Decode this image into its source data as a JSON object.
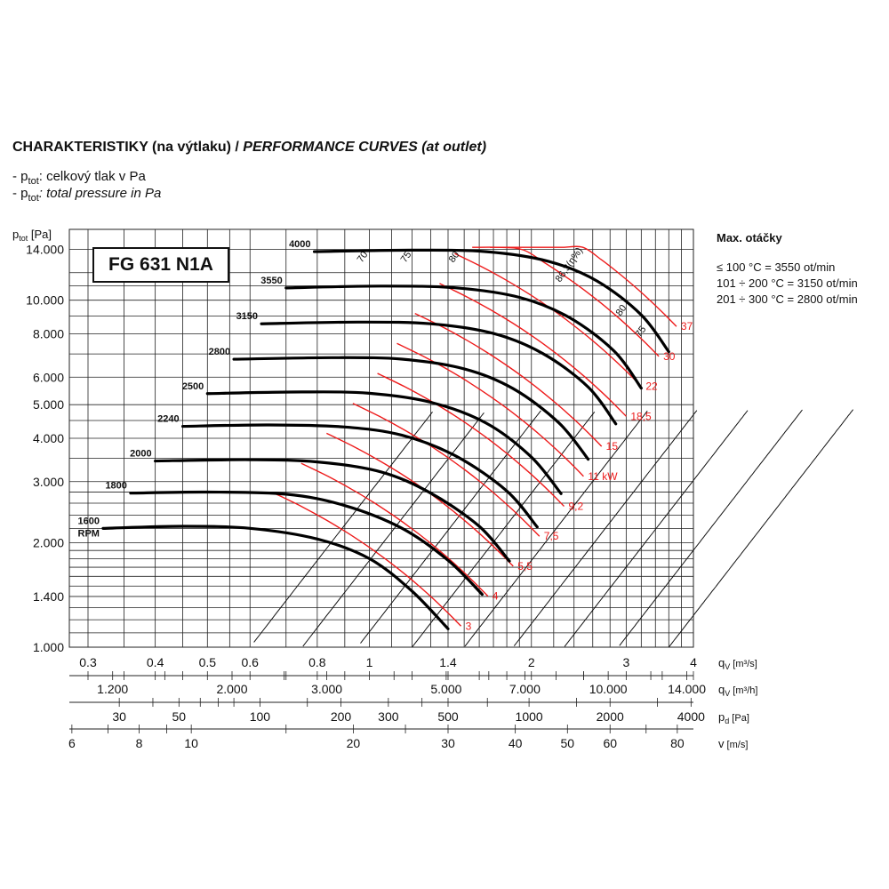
{
  "header": {
    "title_bold": "CHARAKTERISTIKY (na výtlaku) / ",
    "title_italic": "PERFORMANCE CURVES (at outlet)",
    "legend_cz_prefix": "- p",
    "legend_cz_sub": "tot",
    "legend_cz_text": ": celkový tlak v Pa",
    "legend_en_prefix": "- p",
    "legend_en_sub": "tot",
    "legend_en_text": ": total pressure in Pa"
  },
  "model": "FG 631 N1A",
  "max_speed": {
    "heading": "Max. otáčky",
    "lines": [
      "≤ 100 °C = 3550 ot/min",
      "101 ÷ 200 °C = 3150 ot/min",
      "201 ÷ 300 °C = 2800 ot/min"
    ]
  },
  "colors": {
    "rpm_curve": "#000000",
    "power_curve": "#ee1c1c",
    "grid": "#222222",
    "efficiency_line": "#111111"
  },
  "chart_data": {
    "type": "line",
    "title": "FG 631 N1A",
    "y_axis": {
      "label": "p",
      "label_sub": "tot",
      "label_unit": " [Pa]",
      "scale": "log",
      "range": [
        1000,
        16000
      ],
      "tick_values": [
        1000,
        1400,
        2000,
        3000,
        4000,
        5000,
        6000,
        8000,
        10000,
        14000
      ],
      "tick_labels": [
        "1.000",
        "1.400",
        "2.000",
        "3.000",
        "4.000",
        "5.000",
        "6.000",
        "8.000",
        "10.000",
        "14.000"
      ]
    },
    "x_axes": [
      {
        "label": "q",
        "label_sub": "V",
        "label_unit": " [m³/s]",
        "scale": "log",
        "tick_values": [
          0.3,
          0.4,
          0.5,
          0.6,
          0.8,
          1,
          1.4,
          2,
          3,
          4
        ],
        "tick_labels": [
          "0.3",
          "0.4",
          "0.5",
          "0.6",
          "0.8",
          "1",
          "1.4",
          "2",
          "3",
          "4"
        ]
      },
      {
        "label": "q",
        "label_sub": "V",
        "label_unit": " [m³/h]",
        "scale": "log",
        "tick_values": [
          1200,
          2000,
          3000,
          5000,
          7000,
          10000,
          14000
        ],
        "tick_labels": [
          "1.200",
          "2.000",
          "3.000",
          "5.000",
          "7.000",
          "10.000",
          "14.000"
        ]
      },
      {
        "label": "p",
        "label_sub": "d",
        "label_unit": " [Pa]",
        "scale": "log",
        "tick_values": [
          30,
          50,
          100,
          200,
          300,
          500,
          1000,
          2000,
          4000
        ],
        "tick_labels": [
          "30",
          "50",
          "100",
          "200",
          "300",
          "500",
          "1000",
          "2000",
          "4000"
        ]
      },
      {
        "label": "v",
        "label_sub": "",
        "label_unit": " [m/s]",
        "scale": "log",
        "tick_values": [
          6,
          8,
          10,
          20,
          30,
          40,
          50,
          60,
          80
        ],
        "tick_labels": [
          "6",
          "8",
          "10",
          "20",
          "30",
          "40",
          "50",
          "60",
          "80"
        ]
      }
    ],
    "rpm_curves": [
      {
        "rpm_label": "1600",
        "unit_label": "RPM",
        "points": [
          [
            0.32,
            2200
          ],
          [
            0.45,
            2230
          ],
          [
            0.6,
            2200
          ],
          [
            0.8,
            2050
          ],
          [
            1.0,
            1800
          ],
          [
            1.2,
            1450
          ],
          [
            1.4,
            1130
          ]
        ]
      },
      {
        "rpm_label": "1800",
        "points": [
          [
            0.36,
            2780
          ],
          [
            0.5,
            2800
          ],
          [
            0.7,
            2760
          ],
          [
            0.9,
            2560
          ],
          [
            1.15,
            2200
          ],
          [
            1.4,
            1780
          ],
          [
            1.62,
            1420
          ]
        ]
      },
      {
        "rpm_label": "2000",
        "points": [
          [
            0.4,
            3440
          ],
          [
            0.6,
            3470
          ],
          [
            0.8,
            3420
          ],
          [
            1.05,
            3200
          ],
          [
            1.3,
            2780
          ],
          [
            1.6,
            2230
          ],
          [
            1.82,
            1770
          ]
        ]
      },
      {
        "rpm_label": "2240",
        "points": [
          [
            0.45,
            4330
          ],
          [
            0.65,
            4370
          ],
          [
            0.9,
            4310
          ],
          [
            1.15,
            4080
          ],
          [
            1.45,
            3550
          ],
          [
            1.8,
            2820
          ],
          [
            2.05,
            2220
          ]
        ]
      },
      {
        "rpm_label": "2500",
        "points": [
          [
            0.5,
            5380
          ],
          [
            0.75,
            5440
          ],
          [
            1.0,
            5390
          ],
          [
            1.3,
            5080
          ],
          [
            1.65,
            4420
          ],
          [
            2.0,
            3530
          ],
          [
            2.27,
            2770
          ]
        ]
      },
      {
        "rpm_label": "2800",
        "points": [
          [
            0.56,
            6760
          ],
          [
            0.85,
            6830
          ],
          [
            1.15,
            6760
          ],
          [
            1.5,
            6340
          ],
          [
            1.85,
            5560
          ],
          [
            2.25,
            4430
          ],
          [
            2.55,
            3480
          ]
        ]
      },
      {
        "rpm_label": "3150",
        "points": [
          [
            0.63,
            8550
          ],
          [
            0.95,
            8650
          ],
          [
            1.3,
            8550
          ],
          [
            1.7,
            8020
          ],
          [
            2.1,
            7020
          ],
          [
            2.55,
            5620
          ],
          [
            2.87,
            4400
          ]
        ]
      },
      {
        "rpm_label": "3550",
        "points": [
          [
            0.7,
            10850
          ],
          [
            1.05,
            10980
          ],
          [
            1.45,
            10850
          ],
          [
            1.9,
            10190
          ],
          [
            2.35,
            8920
          ],
          [
            2.85,
            7130
          ],
          [
            3.2,
            5580
          ]
        ]
      },
      {
        "rpm_label": "4000",
        "points": [
          [
            0.79,
            13800
          ],
          [
            1.2,
            13940
          ],
          [
            1.65,
            13800
          ],
          [
            2.15,
            12950
          ],
          [
            2.65,
            11350
          ],
          [
            3.2,
            9070
          ],
          [
            3.6,
            7100
          ]
        ]
      }
    ],
    "power_curves_kW": [
      {
        "label": "3",
        "x": 1.48
      },
      {
        "label": "4",
        "x": 1.66
      },
      {
        "label": "5,5",
        "x": 1.85
      },
      {
        "label": "7,5",
        "x": 2.07
      },
      {
        "label": "9,2",
        "x": 2.3
      },
      {
        "label": "11 kW",
        "x": 2.5
      },
      {
        "label": "15",
        "x": 2.7
      },
      {
        "label": "18,5",
        "x": 3.0
      },
      {
        "label": "22",
        "x": 3.2
      },
      {
        "label": "30",
        "x": 3.45
      },
      {
        "label": "37",
        "x": 3.72
      }
    ],
    "efficiency_lines_pct": [
      "70",
      "75",
      "80",
      "86,3(η%)",
      "80",
      "75"
    ],
    "grid": true
  }
}
